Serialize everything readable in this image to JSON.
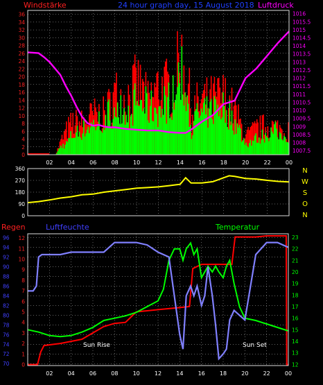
{
  "chart_data": [
    {
      "type": "bar",
      "title": "24 hour graph day, 15 August 2018",
      "left_label": "Windstärke",
      "right_label": "Luftdruck",
      "x_ticks": [
        "02",
        "04",
        "06",
        "08",
        "10",
        "12",
        "14",
        "16",
        "18",
        "20",
        "22",
        "00"
      ],
      "x_range": [
        0,
        24
      ],
      "left_ticks": [
        "0",
        "2",
        "4",
        "6",
        "8",
        "10",
        "12",
        "14",
        "16",
        "18",
        "20",
        "22",
        "24",
        "26",
        "28",
        "30",
        "32",
        "34",
        "36"
      ],
      "left_range": [
        0,
        37
      ],
      "right_ticks": [
        "1007.5",
        "1008",
        "1008.5",
        "1009",
        "1009.5",
        "1010",
        "1010.5",
        "1011",
        "1011.5",
        "1012",
        "1012.5",
        "1013",
        "1013.5",
        "1014",
        "1014.5",
        "1015",
        "1015.5",
        "1016"
      ],
      "right_range": [
        1007.25,
        1016.2
      ],
      "colors": {
        "wind_avg": "#00ff00",
        "wind_gust": "#ff0000",
        "pressure": "#ff00ff",
        "axis_left": "#ff2020",
        "axis_right": "#ff00ff",
        "title": "#2040ff",
        "grid": "#c8c8c8"
      },
      "pressure_series": {
        "name": "Luftdruck",
        "x": [
          0,
          1,
          1.5,
          2,
          2.5,
          3,
          3.5,
          4,
          4.5,
          5,
          5.5,
          6,
          6.5,
          7,
          7.5,
          8,
          8.5,
          9,
          10,
          11,
          12,
          13,
          14,
          14.5,
          15,
          16,
          17,
          18,
          19,
          19.5,
          20,
          21,
          22,
          23,
          24
        ],
        "y": [
          1013.6,
          1013.55,
          1013.3,
          1013,
          1012.6,
          1012.2,
          1011.5,
          1010.9,
          1010.2,
          1009.6,
          1009.2,
          1009.05,
          1009.1,
          1009.0,
          1008.95,
          1008.95,
          1008.9,
          1008.85,
          1008.8,
          1008.75,
          1008.75,
          1008.65,
          1008.6,
          1008.6,
          1008.8,
          1009.3,
          1009.7,
          1010.4,
          1010.6,
          1011.3,
          1012.0,
          1012.6,
          1013.4,
          1014.2,
          1014.9
        ]
      },
      "wind_avg_envelope": {
        "name": "Windstärke Mittel",
        "x": [
          0,
          2,
          2.5,
          3,
          3.5,
          4,
          5,
          6,
          7,
          8,
          9,
          10,
          11,
          12,
          13,
          13.5,
          14,
          14.5,
          15,
          15.5,
          16,
          17,
          18,
          19,
          20,
          21,
          22,
          23,
          24
        ],
        "y": [
          0,
          0,
          0,
          3,
          4,
          7,
          9,
          11,
          13,
          18,
          14,
          20,
          17,
          17,
          20,
          25,
          29,
          25,
          10,
          15,
          14,
          17,
          18,
          12,
          4,
          6,
          8,
          9,
          7
        ]
      },
      "wind_gust_envelope": {
        "name": "Windstärke Böen",
        "x": [
          0,
          2,
          2.5,
          3,
          3.5,
          4,
          5,
          6,
          7,
          8,
          9,
          10,
          11,
          12,
          13,
          13.5,
          14,
          14.5,
          15,
          15.5,
          16,
          17,
          18,
          19,
          20,
          21,
          22,
          23,
          24
        ],
        "y": [
          0,
          0,
          0,
          5,
          9,
          12,
          12,
          15,
          15,
          23,
          21,
          27,
          20,
          26,
          25,
          29,
          36,
          32,
          16,
          19,
          20,
          21,
          22,
          16,
          7,
          10,
          11,
          10,
          9
        ]
      }
    },
    {
      "type": "line",
      "left_ticks": [
        "0",
        "90",
        "180",
        "270",
        "360"
      ],
      "left_range": [
        0,
        360
      ],
      "right_ticks": [
        "N",
        "W",
        "S",
        "O",
        "N"
      ],
      "x_range": [
        0,
        24
      ],
      "colors": {
        "direction": "#ffff00",
        "axis_left": "#ffffff",
        "axis_right": "#ffff00"
      },
      "series": [
        {
          "name": "Windrichtung",
          "x": [
            0,
            1,
            2,
            3,
            4,
            5,
            6,
            7,
            8,
            9,
            10,
            11,
            12,
            13,
            14,
            14.5,
            15,
            16,
            17,
            18,
            18.5,
            19,
            20,
            21,
            22,
            23,
            24
          ],
          "y": [
            100,
            108,
            120,
            135,
            145,
            160,
            165,
            180,
            190,
            200,
            210,
            215,
            220,
            230,
            240,
            290,
            250,
            250,
            260,
            290,
            305,
            300,
            285,
            280,
            270,
            262,
            258
          ]
        }
      ]
    },
    {
      "type": "line",
      "left_title": "Regen",
      "middle_title": "Luftfeuchte",
      "right_title": "Temperatur",
      "x_ticks": [
        "02",
        "04",
        "06",
        "08",
        "10",
        "12",
        "14",
        "16",
        "18",
        "20",
        "22",
        "00"
      ],
      "x_range": [
        0,
        24
      ],
      "humidity_ticks": [
        "70",
        "72",
        "74",
        "76",
        "78",
        "80",
        "82",
        "84",
        "86",
        "88",
        "90",
        "92",
        "94",
        "96"
      ],
      "humidity_range": [
        69.6,
        96.8
      ],
      "rain_ticks": [
        "0",
        "1",
        "2",
        "3",
        "4",
        "5",
        "6",
        "7",
        "8",
        "9",
        "10",
        "11",
        "12"
      ],
      "rain_range": [
        -0.1,
        12.4
      ],
      "temp_ticks": [
        "12",
        "13",
        "14",
        "15",
        "16",
        "17",
        "18",
        "19",
        "20",
        "21",
        "22",
        "23"
      ],
      "temp_range": [
        11.9,
        23.3
      ],
      "annotations": [
        "Sun Rise",
        "Sun Set"
      ],
      "colors": {
        "humidity": "#8080ff",
        "rain": "#ff0000",
        "temperature": "#00ff00",
        "rain_axis": "#ff2020",
        "humidity_axis": "#4040ff",
        "temp_axis": "#00ff00",
        "annotation": "#ffffff"
      },
      "series": [
        {
          "name": "Luftfeuchte",
          "x": [
            0,
            0.5,
            0.8,
            1,
            1.3,
            2,
            3,
            4,
            5,
            6,
            7,
            8,
            9,
            10,
            11,
            12,
            13,
            13.5,
            14,
            14.3,
            14.6,
            15,
            15.3,
            15.6,
            16,
            16.3,
            16.6,
            17,
            17.3,
            17.6,
            18,
            18.3,
            18.6,
            19,
            19.5,
            20,
            21,
            22,
            23,
            24
          ],
          "y": [
            85,
            85,
            86,
            92,
            92.5,
            92.5,
            92.5,
            93,
            93,
            93,
            93,
            95,
            95,
            95,
            94.5,
            93,
            92,
            84,
            76,
            73,
            84,
            86,
            84,
            86,
            82,
            84,
            90,
            84,
            78,
            71,
            72,
            73,
            79,
            81,
            80,
            79,
            92.5,
            95,
            95,
            94
          ]
        },
        {
          "name": "Regen",
          "x": [
            0,
            0.9,
            1.2,
            1.5,
            3,
            5,
            6,
            7,
            8,
            9,
            10,
            11,
            12,
            13,
            14,
            14.9,
            15.2,
            16,
            17,
            18,
            18.8,
            19.1,
            20,
            21,
            22,
            23,
            23.8,
            23.85,
            24
          ],
          "y": [
            0,
            0,
            1.2,
            1.8,
            2,
            2.4,
            3,
            3.6,
            3.9,
            4,
            5,
            5.1,
            5.2,
            5.3,
            5.4,
            5.5,
            9.1,
            9.5,
            9.5,
            9.5,
            9.5,
            12.1,
            12.1,
            12.1,
            12.2,
            12.2,
            12.2,
            0,
            0
          ]
        },
        {
          "name": "Temperatur",
          "x": [
            0,
            1,
            2,
            3,
            4,
            5,
            6,
            7,
            8,
            9,
            10,
            11,
            12,
            12.5,
            13,
            13.5,
            14,
            14.3,
            14.6,
            15,
            15.3,
            15.6,
            16,
            16.3,
            16.6,
            17,
            17.3,
            17.6,
            18,
            18.3,
            18.6,
            19,
            19.5,
            20,
            21,
            22,
            23,
            24
          ],
          "y": [
            15,
            14.8,
            14.5,
            14.4,
            14.5,
            14.8,
            15.2,
            15.8,
            16,
            16.2,
            16.5,
            17,
            17.5,
            18.5,
            21,
            22,
            22,
            21,
            22,
            22.5,
            21.5,
            22,
            19.5,
            20,
            20.5,
            20,
            20.5,
            20,
            19.5,
            20.5,
            21,
            19,
            17,
            16,
            15.8,
            15.5,
            15.2,
            14.9
          ]
        }
      ]
    }
  ]
}
